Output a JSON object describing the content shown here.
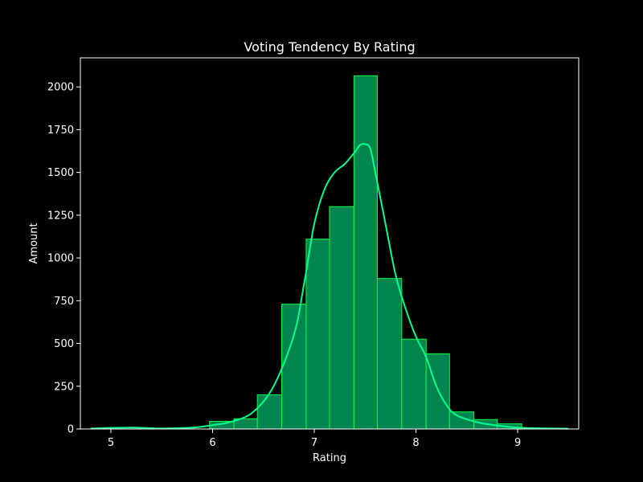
{
  "chart_data": {
    "type": "bar",
    "title": "Voting Tendency By Rating",
    "xlabel": "Rating",
    "ylabel": "Amount",
    "xlim": [
      4.7,
      9.6
    ],
    "ylim": [
      0,
      2170
    ],
    "xticks": [
      5,
      6,
      7,
      8,
      9
    ],
    "yticks": [
      0,
      250,
      500,
      750,
      1000,
      1250,
      1500,
      1750,
      2000
    ],
    "grid": false,
    "legend": "none",
    "bins": [
      {
        "x0": 5.97,
        "x1": 6.21,
        "value": 45
      },
      {
        "x0": 6.21,
        "x1": 6.44,
        "value": 60
      },
      {
        "x0": 6.44,
        "x1": 6.68,
        "value": 200
      },
      {
        "x0": 6.68,
        "x1": 6.92,
        "value": 730
      },
      {
        "x0": 6.92,
        "x1": 7.15,
        "value": 1110
      },
      {
        "x0": 7.15,
        "x1": 7.39,
        "value": 1300
      },
      {
        "x0": 7.39,
        "x1": 7.62,
        "value": 2065
      },
      {
        "x0": 7.62,
        "x1": 7.86,
        "value": 880
      },
      {
        "x0": 7.86,
        "x1": 8.1,
        "value": 525
      },
      {
        "x0": 8.1,
        "x1": 8.33,
        "value": 440
      },
      {
        "x0": 8.33,
        "x1": 8.57,
        "value": 100
      },
      {
        "x0": 8.57,
        "x1": 8.8,
        "value": 55
      },
      {
        "x0": 8.8,
        "x1": 9.04,
        "value": 30
      }
    ],
    "kde": {
      "x": [
        4.8,
        5.2,
        5.5,
        5.8,
        6.0,
        6.2,
        6.4,
        6.6,
        6.8,
        6.9,
        7.0,
        7.1,
        7.2,
        7.3,
        7.4,
        7.45,
        7.5,
        7.55,
        7.6,
        7.7,
        7.8,
        7.9,
        8.0,
        8.1,
        8.2,
        8.3,
        8.4,
        8.6,
        8.8,
        9.0,
        9.2,
        9.5
      ],
      "y": [
        3,
        8,
        3,
        8,
        22,
        45,
        100,
        250,
        550,
        850,
        1200,
        1400,
        1500,
        1550,
        1620,
        1660,
        1665,
        1640,
        1500,
        1200,
        900,
        700,
        540,
        420,
        250,
        140,
        80,
        40,
        20,
        8,
        4,
        2
      ]
    },
    "colors": {
      "background": "#000000",
      "bar_fill": "#008450",
      "bar_edge": "#00ff41",
      "kde_line": "#00ff8c",
      "axes": "#ffffff",
      "text": "#ffffff"
    }
  }
}
